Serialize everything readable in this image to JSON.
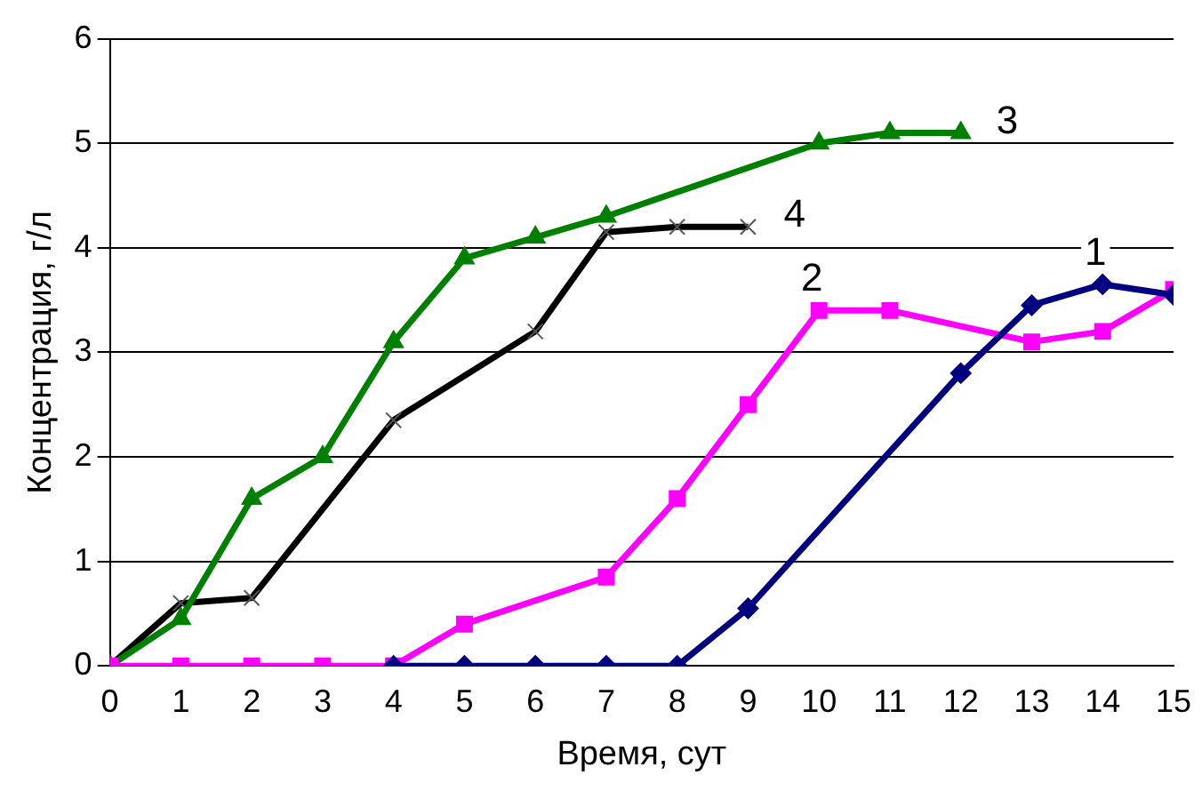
{
  "chart_data": {
    "type": "line",
    "xlabel": "Время, сут",
    "ylabel": "Концентрация, г/л",
    "xlim": [
      0,
      15
    ],
    "xticks": [
      0,
      1,
      2,
      3,
      4,
      5,
      6,
      7,
      8,
      9,
      10,
      11,
      12,
      13,
      14,
      15
    ],
    "ylim": [
      0,
      6
    ],
    "yticks": [
      0,
      1,
      2,
      3,
      4,
      5,
      6
    ],
    "grid": "y",
    "legend": false,
    "series": [
      {
        "name": "1",
        "color": "#000080",
        "marker": "diamond",
        "x": [
          4,
          5,
          6,
          7,
          8,
          9,
          12,
          13,
          14,
          15
        ],
        "values": [
          0,
          0,
          0,
          0,
          0,
          0.55,
          2.8,
          3.45,
          3.65,
          3.55
        ]
      },
      {
        "name": "2",
        "color": "#ff00ff",
        "marker": "square",
        "x": [
          0,
          1,
          2,
          3,
          4,
          5,
          7,
          8,
          9,
          10,
          11,
          13,
          14,
          15
        ],
        "values": [
          0,
          0,
          0,
          0,
          0,
          0.4,
          0.85,
          1.6,
          2.5,
          3.4,
          3.4,
          3.1,
          3.2,
          3.6
        ]
      },
      {
        "name": "3",
        "color": "#008000",
        "marker": "triangle",
        "x": [
          0,
          1,
          2,
          3,
          4,
          5,
          6,
          7,
          10,
          11,
          12
        ],
        "values": [
          0,
          0.45,
          1.6,
          2.0,
          3.1,
          3.9,
          4.1,
          4.3,
          5.0,
          5.1,
          5.1
        ]
      },
      {
        "name": "4",
        "color": "#000000",
        "marker": "cross",
        "x": [
          0,
          1,
          2,
          4,
          6,
          7,
          8,
          9
        ],
        "values": [
          0,
          0.6,
          0.65,
          2.35,
          3.2,
          4.15,
          4.2,
          4.2
        ]
      }
    ]
  }
}
